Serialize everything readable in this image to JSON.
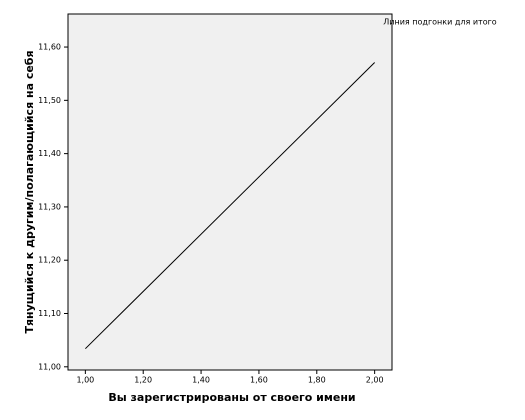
{
  "chart_data": {
    "type": "line",
    "x_label": "Вы зарегистрированы от своего имени",
    "y_label": "Тянущийся к другим/полагающийся на себя",
    "series": [
      {
        "name": "Линия подгонки для итого",
        "color": "#000000",
        "x": [
          1.0,
          2.0
        ],
        "values": [
          11.034,
          11.571
        ]
      }
    ],
    "xlim": [
      0.94,
      2.06
    ],
    "xticks": [
      {
        "value": 1.0,
        "label": "1,00"
      },
      {
        "value": 1.2,
        "label": "1,20"
      },
      {
        "value": 1.4,
        "label": "1,40"
      },
      {
        "value": 1.6,
        "label": "1,60"
      },
      {
        "value": 1.8,
        "label": "1,80"
      },
      {
        "value": 2.0,
        "label": "2,00"
      }
    ],
    "ylim": [
      10.994,
      11.662
    ],
    "yticks": [
      {
        "value": 11.0,
        "label": "11,00"
      },
      {
        "value": 11.1,
        "label": "11,10"
      },
      {
        "value": 11.2,
        "label": "11,20"
      },
      {
        "value": 11.3,
        "label": "11,30"
      },
      {
        "value": 11.4,
        "label": "11,40"
      },
      {
        "value": 11.5,
        "label": "11,50"
      },
      {
        "value": 11.6,
        "label": "11,60"
      }
    ],
    "plot_background": "#f0f0f0",
    "legend": "top-right"
  }
}
